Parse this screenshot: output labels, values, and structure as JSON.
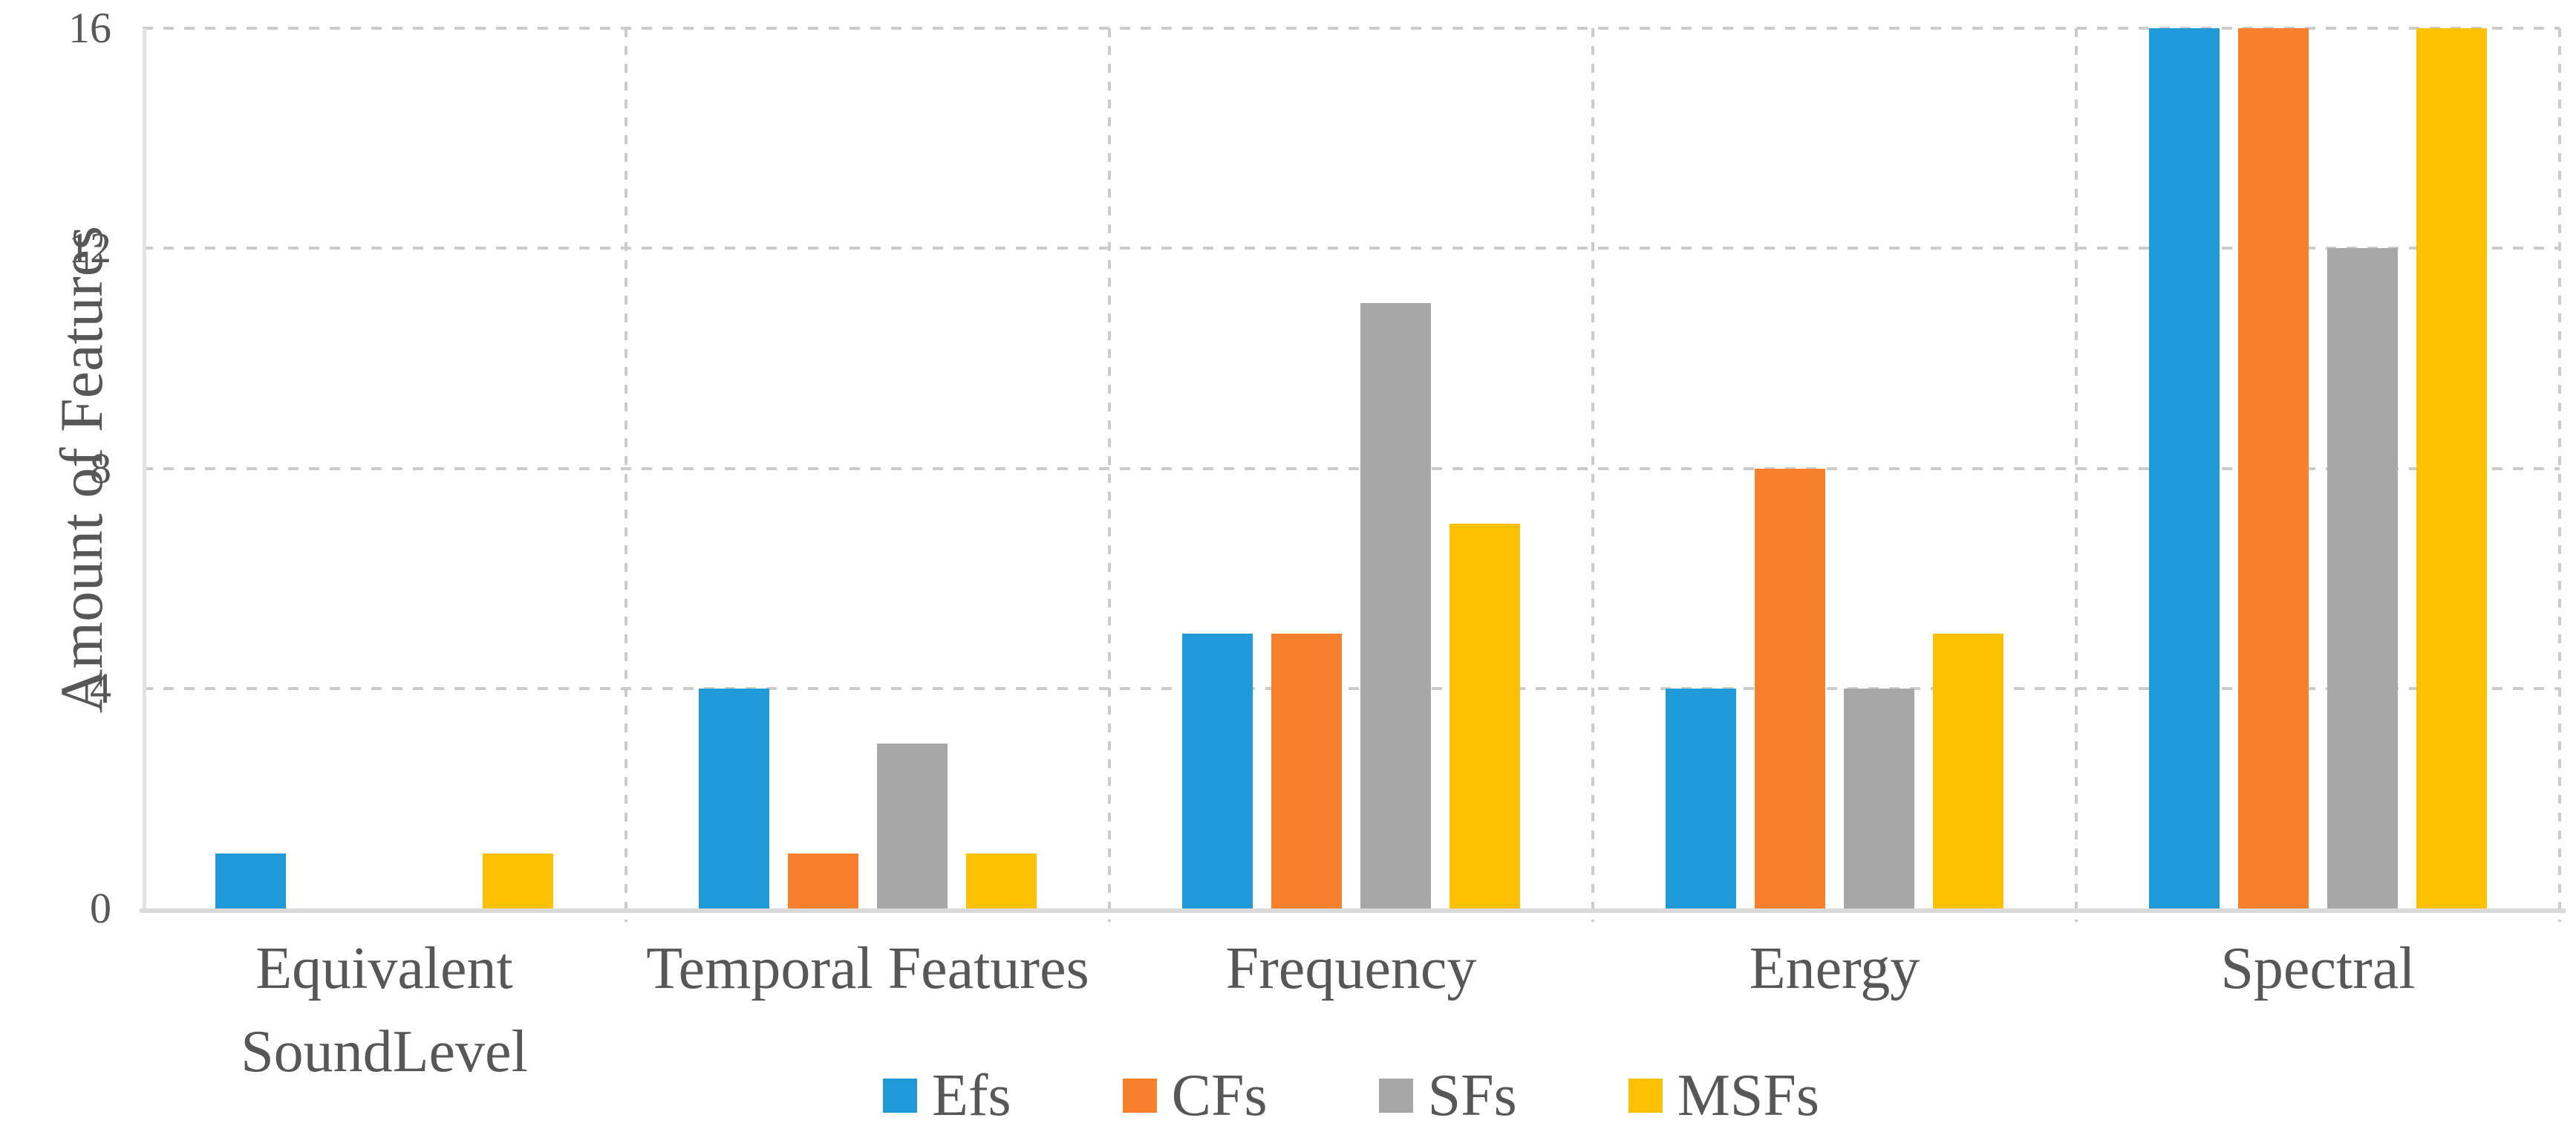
{
  "chart_data": {
    "type": "bar",
    "title": "",
    "ylabel": "Amount of Features",
    "xlabel": "",
    "categories": [
      "Equivalent SoundLevel",
      "Temporal Features",
      "Frequency",
      "Energy",
      "Spectral"
    ],
    "series": [
      {
        "name": "Efs",
        "color": "#2099D8",
        "values": [
          1,
          4,
          5,
          4,
          16
        ]
      },
      {
        "name": "CFs",
        "color": "#F8802D",
        "values": [
          0,
          1,
          5,
          8,
          16
        ]
      },
      {
        "name": "SFs",
        "color": "#A7A7A7",
        "values": [
          0,
          3,
          11,
          4,
          12
        ]
      },
      {
        "name": "MSFs",
        "color": "#FEC002",
        "values": [
          1,
          1,
          7,
          5,
          16
        ]
      }
    ],
    "ylim": [
      0,
      16
    ],
    "yticks": [
      0,
      4,
      8,
      12,
      16
    ],
    "grid": "dashed horizontal lines at y ticks, dashed vertical lines at category boundaries",
    "legend_position": "bottom-center"
  },
  "colors": {
    "text": "#575757",
    "grid_dash": "#CCCCCC",
    "axis": "#DDDDDD",
    "background": "#FFFFFF"
  }
}
